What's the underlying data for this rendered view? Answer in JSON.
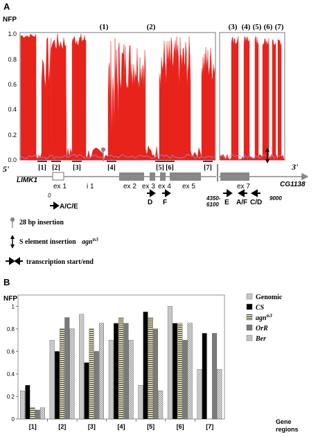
{
  "panel_a": {
    "label": "A",
    "ylabel": "NFP",
    "yticks": [
      "0.0",
      "0.2",
      "0.4",
      "0.6",
      "0.8",
      "1.0"
    ],
    "region_labels": [
      "(1)",
      "(2)",
      "(3)",
      "(4)",
      "(5)",
      "(6)",
      "(7)"
    ],
    "bracket_labels": [
      "[1]",
      "[2]",
      "[3]",
      "[4]",
      "[5]",
      "[6]",
      "[7]"
    ],
    "five_prime": "5'",
    "three_prime": "3'",
    "gene_left": "LIMK1",
    "gene_right": "CG1138",
    "exons": [
      "ex 1",
      "i 1",
      "ex 2",
      "ex 3",
      "ex 4",
      "ex 5",
      "ex 7"
    ],
    "coords": {
      "zero": "0",
      "mid_top": "4350-",
      "mid_bottom": "6100",
      "end": "9000"
    },
    "primers": {
      "ace": "A/C/E",
      "d": "D",
      "f": "F",
      "e": "E",
      "af": "A/F",
      "cd": "C/D"
    },
    "legend": {
      "insertion_28": "28 bp insertion",
      "s_element": "S element insertion",
      "agn_base": "agn",
      "agn_sup": "ts3",
      "transcription": "transcription start/end"
    },
    "colors": {
      "nfp_fill": "#e8231c",
      "nfp_line": "#8a9ad8"
    }
  },
  "panel_b": {
    "label": "B",
    "ylabel": "NFP",
    "xlabel_line1": "Gene",
    "xlabel_line2": "regions"
  },
  "chart_data": {
    "type": "bar",
    "categories": [
      "[1]",
      "[2]",
      "[3]",
      "[4]",
      "[5]",
      "[6]",
      "[7]"
    ],
    "yticks": [
      "0",
      "0.2",
      "0.4",
      "0.6",
      "0.8",
      "1"
    ],
    "ylim": [
      0,
      1.1
    ],
    "legend_position": "right",
    "series": [
      {
        "name": "Genomic",
        "sup": "",
        "italic": false,
        "values": [
          0.25,
          0.7,
          0.93,
          0.7,
          0.3,
          1.0,
          0.44
        ]
      },
      {
        "name": "CS",
        "sup": "",
        "italic": true,
        "values": [
          0.3,
          0.6,
          0.5,
          0.85,
          0.95,
          0.85,
          0.76
        ]
      },
      {
        "name": "agn",
        "sup": "ts3",
        "italic": true,
        "values": [
          0.1,
          0.8,
          0.8,
          0.9,
          0.9,
          0.85,
          0.0
        ]
      },
      {
        "name": "OrR",
        "sup": "",
        "italic": true,
        "values": [
          0.08,
          0.9,
          0.6,
          0.85,
          0.8,
          0.7,
          0.76
        ]
      },
      {
        "name": "Ber",
        "sup": "",
        "italic": true,
        "values": [
          0.1,
          0.8,
          0.85,
          0.7,
          0.25,
          0.85,
          0.44
        ]
      }
    ],
    "fills": [
      "#c8c8c8",
      "#000000",
      "#b7b59e",
      "#7a7a7a",
      "#d6d6d6"
    ]
  }
}
